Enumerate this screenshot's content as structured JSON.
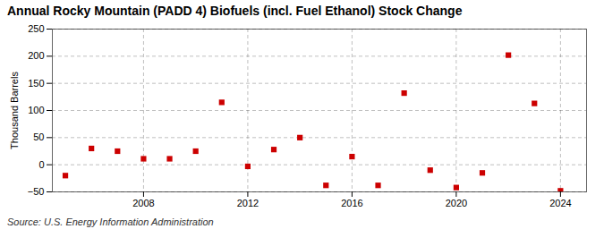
{
  "chart_data": {
    "type": "scatter",
    "title": "Annual Rocky Mountain (PADD 4) Biofuels (incl. Fuel Ethanol) Stock Change",
    "ylabel": "Thousand Barrels",
    "caption": "Source: U.S. Energy Information Administration",
    "x": [
      2005,
      2006,
      2007,
      2008,
      2009,
      2010,
      2011,
      2012,
      2013,
      2014,
      2015,
      2016,
      2017,
      2018,
      2019,
      2020,
      2021,
      2022,
      2023,
      2024
    ],
    "values": [
      -20,
      30,
      25,
      11,
      11,
      25,
      115,
      -3,
      28,
      50,
      -38,
      15,
      -38,
      132,
      -10,
      -42,
      -15,
      202,
      113,
      -48
    ],
    "color": "#cc0000",
    "marker": "square",
    "xlim": [
      2004.5,
      2025
    ],
    "xticks": [
      2008,
      2012,
      2016,
      2020,
      2024
    ],
    "ylim": [
      -50,
      250
    ],
    "yticks": [
      -50,
      0,
      50,
      100,
      150,
      200,
      250
    ],
    "grid": true
  }
}
